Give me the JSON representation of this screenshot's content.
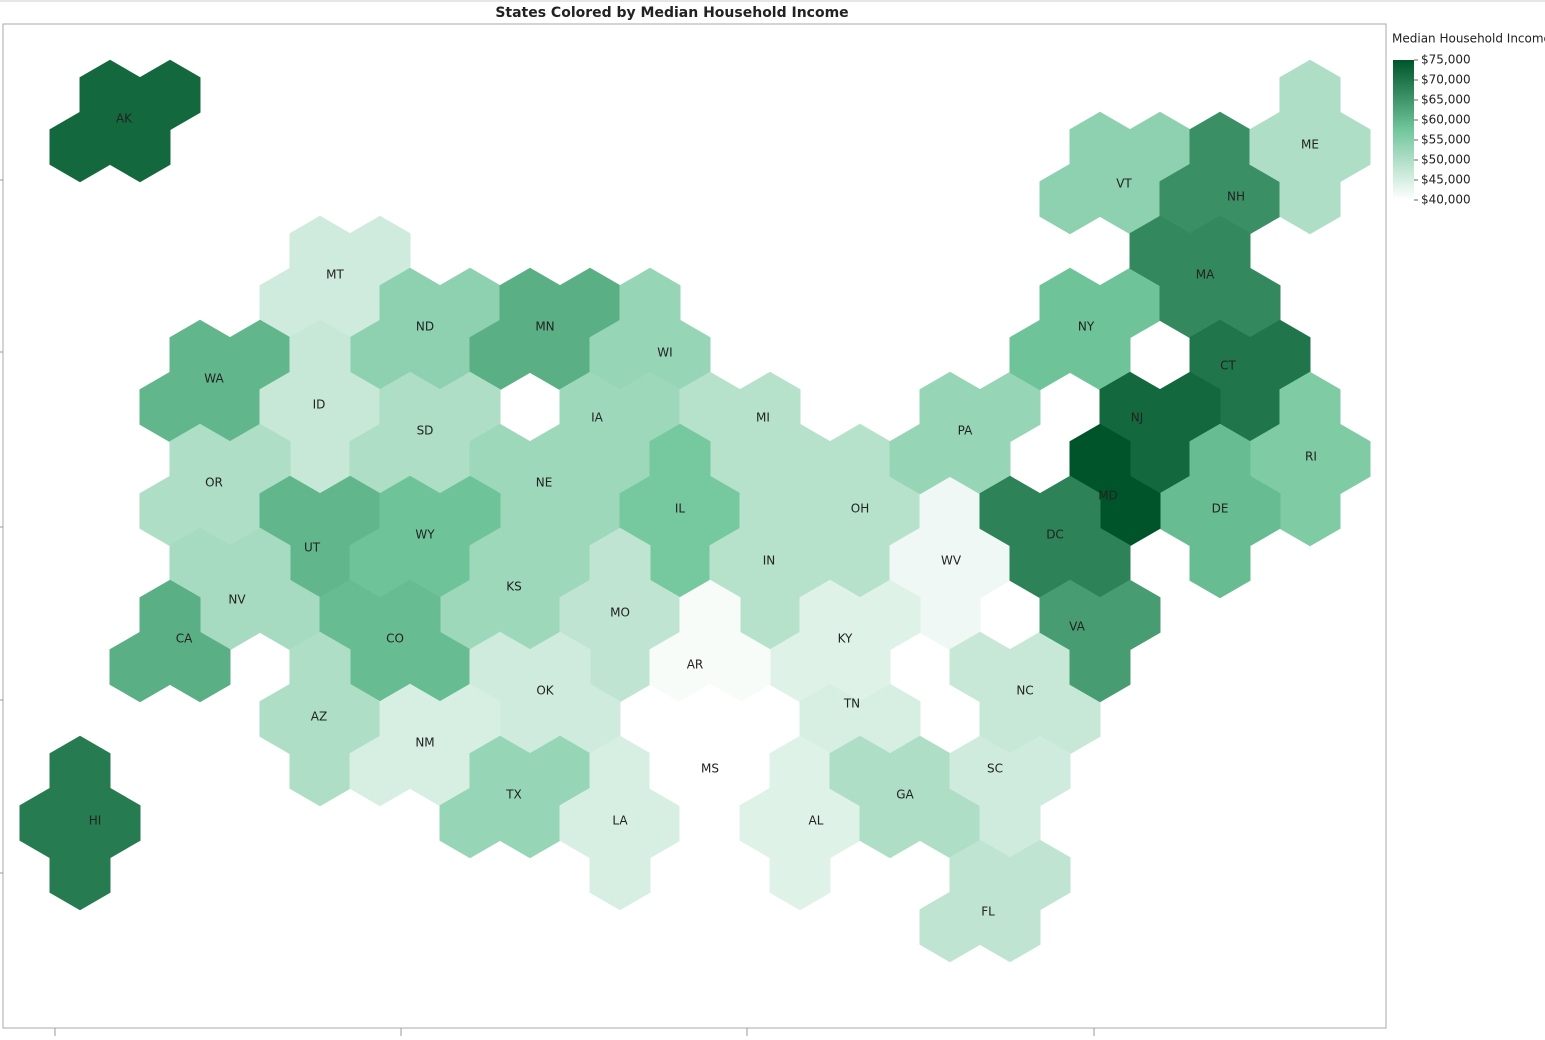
{
  "chart_data": {
    "type": "hexmap",
    "title": "States Colored by Median Household Income",
    "legend_title": "Median Household Income",
    "clim": [
      40000,
      75000
    ],
    "colors": [
      "#ffffff",
      "#72c69c",
      "#00542a"
    ],
    "legend_ticks": [
      {
        "value": 75000,
        "label": "$75,000"
      },
      {
        "value": 70000,
        "label": "$70,000"
      },
      {
        "value": 65000,
        "label": "$65,000"
      },
      {
        "value": 60000,
        "label": "$60,000"
      },
      {
        "value": 55000,
        "label": "$55,000"
      },
      {
        "value": 50000,
        "label": "$50,000"
      },
      {
        "value": 45000,
        "label": "$45,000"
      },
      {
        "value": 40000,
        "label": "$40,000"
      }
    ],
    "states": [
      {
        "label": "AK",
        "value": 72000
      },
      {
        "label": "MT",
        "value": 46000
      },
      {
        "label": "ND",
        "value": 54000
      },
      {
        "label": "MN",
        "value": 61000
      },
      {
        "label": "WI",
        "value": 53000
      },
      {
        "label": "WA",
        "value": 60000
      },
      {
        "label": "ID",
        "value": 47000
      },
      {
        "label": "SD",
        "value": 50000
      },
      {
        "label": "IA",
        "value": 52000
      },
      {
        "label": "MI",
        "value": 49000
      },
      {
        "label": "OR",
        "value": 50000
      },
      {
        "label": "NE",
        "value": 52000
      },
      {
        "label": "IL",
        "value": 57000
      },
      {
        "label": "UT",
        "value": 60000
      },
      {
        "label": "WY",
        "value": 58000
      },
      {
        "label": "NV",
        "value": 51000
      },
      {
        "label": "CA",
        "value": 61000
      },
      {
        "label": "KS",
        "value": 52000
      },
      {
        "label": "CO",
        "value": 59000
      },
      {
        "label": "MO",
        "value": 48000
      },
      {
        "label": "IN",
        "value": 49000
      },
      {
        "label": "OH",
        "value": 49000
      },
      {
        "label": "WV",
        "value": 42000
      },
      {
        "label": "KY",
        "value": 44000
      },
      {
        "label": "AR",
        "value": 41000
      },
      {
        "label": "OK",
        "value": 46000
      },
      {
        "label": "AZ",
        "value": 50000
      },
      {
        "label": "NM",
        "value": 45000
      },
      {
        "label": "TN",
        "value": 45000
      },
      {
        "label": "NC",
        "value": 47000
      },
      {
        "label": "TX",
        "value": 53000
      },
      {
        "label": "LA",
        "value": 45000
      },
      {
        "label": "MS",
        "value": 40000
      },
      {
        "label": "AL",
        "value": 44000
      },
      {
        "label": "GA",
        "value": 50000
      },
      {
        "label": "SC",
        "value": 46000
      },
      {
        "label": "FL",
        "value": 48000
      },
      {
        "label": "PA",
        "value": 53000
      },
      {
        "label": "NY",
        "value": 58000
      },
      {
        "label": "VT",
        "value": 54000
      },
      {
        "label": "NH",
        "value": 66000
      },
      {
        "label": "ME",
        "value": 50000
      },
      {
        "label": "MA",
        "value": 67000
      },
      {
        "label": "CT",
        "value": 70000
      },
      {
        "label": "NJ",
        "value": 72000
      },
      {
        "label": "RI",
        "value": 56000
      },
      {
        "label": "DE",
        "value": 59000
      },
      {
        "label": "MD",
        "value": 75000
      },
      {
        "label": "DC",
        "value": 68000
      },
      {
        "label": "VA",
        "value": 64000
      },
      {
        "label": "HI",
        "value": 69000
      }
    ]
  }
}
